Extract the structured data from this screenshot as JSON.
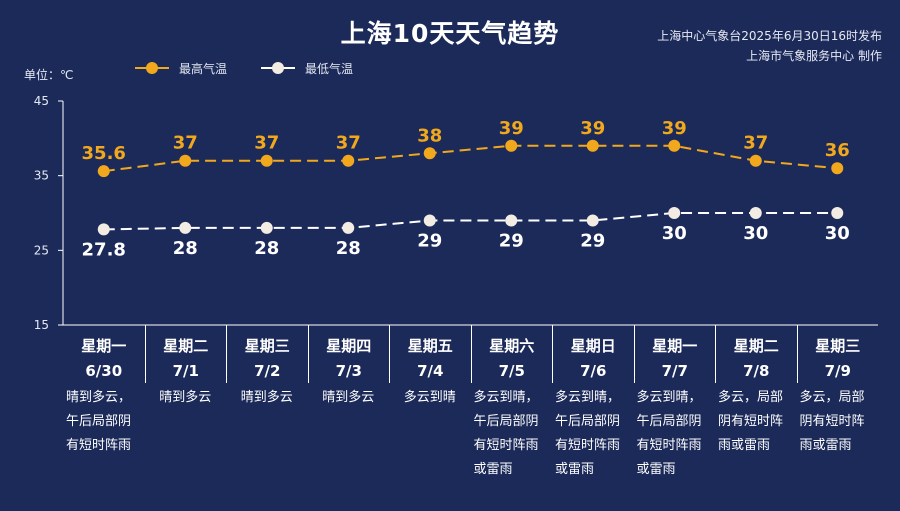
{
  "header": {
    "title": "上海10天天气趋势",
    "publish_line1": "上海中心气象台2025年6月30日16时发布",
    "publish_line2": "上海市气象服务中心 制作",
    "unit_label": "单位：℃"
  },
  "legend": {
    "high_label": "最高气温",
    "low_label": "最低气温"
  },
  "colors": {
    "background": "#1c2a5a",
    "high": "#f2a81d",
    "low": "#ffffff",
    "low_marker": "#f3ece2"
  },
  "chart_data": {
    "type": "line",
    "categories": [
      "6/30",
      "7/1",
      "7/2",
      "7/3",
      "7/4",
      "7/5",
      "7/6",
      "7/7",
      "7/8",
      "7/9"
    ],
    "weekdays": [
      "星期一",
      "星期二",
      "星期三",
      "星期四",
      "星期五",
      "星期六",
      "星期日",
      "星期一",
      "星期二",
      "星期三"
    ],
    "series": [
      {
        "name": "最高气温",
        "values": [
          35.6,
          37,
          37,
          37,
          38,
          39,
          39,
          39,
          37,
          36
        ],
        "labels": [
          "35.6",
          "37",
          "37",
          "37",
          "38",
          "39",
          "39",
          "39",
          "37",
          "36"
        ]
      },
      {
        "name": "最低气温",
        "values": [
          27.8,
          28,
          28,
          28,
          29,
          29,
          29,
          30,
          30,
          30
        ],
        "labels": [
          "27.8",
          "28",
          "28",
          "28",
          "29",
          "29",
          "29",
          "30",
          "30",
          "30"
        ]
      }
    ],
    "yticks": [
      "45",
      "35",
      "25",
      "15"
    ],
    "ylim": [
      15,
      45
    ],
    "line_style": "dashed",
    "grid": false,
    "legend_position": "top-left",
    "descriptions": [
      "晴到多云，\n午后局部阴\n有短时阵雨",
      "晴到多云",
      "晴到多云",
      "晴到多云",
      "多云到晴",
      "多云到晴，\n午后局部阴\n有短时阵雨\n或雷雨",
      "多云到晴，\n午后局部阴\n有短时阵雨\n或雷雨",
      "多云到晴，\n午后局部阴\n有短时阵雨\n或雷雨",
      "多云，局部\n阴有短时阵\n雨或雷雨",
      "多云，局部\n阴有短时阵\n雨或雷雨"
    ]
  }
}
